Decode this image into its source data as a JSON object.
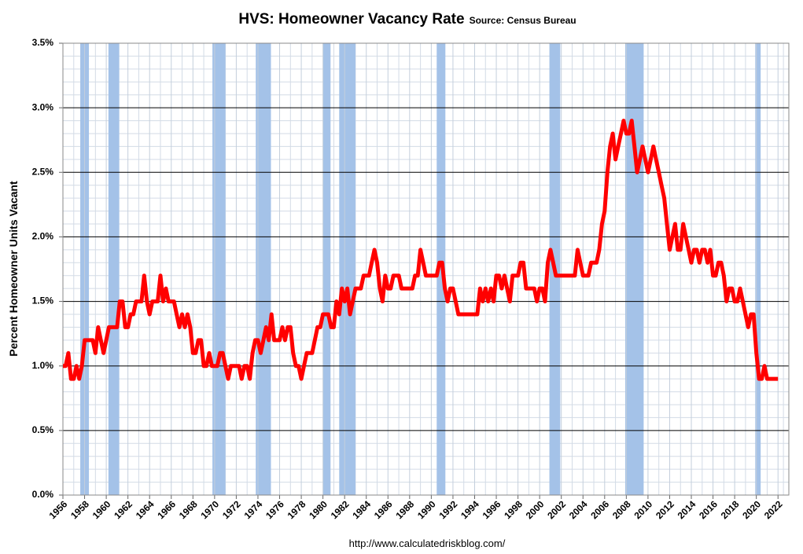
{
  "chart_data": {
    "type": "line",
    "title": "HVS: Homeowner Vacancy Rate",
    "subtitle": "Source: Census Bureau",
    "y_label": "Percent Homeowner Units Vacant",
    "footer": "http://www.calculatedriskblog.com/",
    "xlim": [
      1956,
      2023
    ],
    "xticks": [
      1956,
      1958,
      1960,
      1962,
      1964,
      1966,
      1968,
      1970,
      1972,
      1974,
      1976,
      1978,
      1980,
      1982,
      1984,
      1986,
      1988,
      1990,
      1992,
      1994,
      1996,
      1998,
      2000,
      2002,
      2004,
      2006,
      2008,
      2010,
      2012,
      2014,
      2016,
      2018,
      2020,
      2022
    ],
    "ylim": [
      0,
      3.5
    ],
    "yticks": [
      {
        "value": 0,
        "label": "0.0%"
      },
      {
        "value": 0.5,
        "label": "0.5%"
      },
      {
        "value": 1,
        "label": "1.0%"
      },
      {
        "value": 1.5,
        "label": "1.5%"
      },
      {
        "value": 2,
        "label": "2.0%"
      },
      {
        "value": 2.5,
        "label": "2.5%"
      },
      {
        "value": 3,
        "label": "3.0%"
      },
      {
        "value": 3.5,
        "label": "3.5%"
      }
    ],
    "grid": true,
    "recession_color": "#a4c2e8",
    "recessions": [
      {
        "start": 1957.6,
        "end": 1958.4
      },
      {
        "start": 1960.2,
        "end": 1961.2
      },
      {
        "start": 1969.8,
        "end": 1971.0
      },
      {
        "start": 1973.8,
        "end": 1975.2
      },
      {
        "start": 1980.0,
        "end": 1980.7
      },
      {
        "start": 1981.5,
        "end": 1983.0
      },
      {
        "start": 1990.5,
        "end": 1991.3
      },
      {
        "start": 2000.9,
        "end": 2001.9
      },
      {
        "start": 2007.9,
        "end": 2009.6
      },
      {
        "start": 2019.9,
        "end": 2020.4
      }
    ],
    "series": [
      {
        "color": "#ff0000",
        "x": [
          1956,
          1956.25,
          1956.5,
          1956.75,
          1957,
          1957.25,
          1957.5,
          1957.75,
          1958,
          1958.25,
          1958.5,
          1958.75,
          1959,
          1959.25,
          1959.5,
          1959.75,
          1960,
          1960.25,
          1960.5,
          1960.75,
          1961,
          1961.25,
          1961.5,
          1961.75,
          1962,
          1962.25,
          1962.5,
          1962.75,
          1963,
          1963.25,
          1963.5,
          1963.75,
          1964,
          1964.25,
          1964.5,
          1964.75,
          1965,
          1965.25,
          1965.5,
          1965.75,
          1966,
          1966.25,
          1966.5,
          1966.75,
          1967,
          1967.25,
          1967.5,
          1967.75,
          1968,
          1968.25,
          1968.5,
          1968.75,
          1969,
          1969.25,
          1969.5,
          1969.75,
          1970,
          1970.25,
          1970.5,
          1970.75,
          1971,
          1971.25,
          1971.5,
          1971.75,
          1972,
          1972.25,
          1972.5,
          1972.75,
          1973,
          1973.25,
          1973.5,
          1973.75,
          1974,
          1974.25,
          1974.5,
          1974.75,
          1975,
          1975.25,
          1975.5,
          1975.75,
          1976,
          1976.25,
          1976.5,
          1976.75,
          1977,
          1977.25,
          1977.5,
          1977.75,
          1978,
          1978.25,
          1978.5,
          1978.75,
          1979,
          1979.25,
          1979.5,
          1979.75,
          1980,
          1980.25,
          1980.5,
          1980.75,
          1981,
          1981.25,
          1981.5,
          1981.75,
          1982,
          1982.25,
          1982.5,
          1982.75,
          1983,
          1983.25,
          1983.5,
          1983.75,
          1984,
          1984.25,
          1984.5,
          1984.75,
          1985,
          1985.25,
          1985.5,
          1985.75,
          1986,
          1986.25,
          1986.5,
          1986.75,
          1987,
          1987.25,
          1987.5,
          1987.75,
          1988,
          1988.25,
          1988.5,
          1988.75,
          1989,
          1989.25,
          1989.5,
          1989.75,
          1990,
          1990.25,
          1990.5,
          1990.75,
          1991,
          1991.25,
          1991.5,
          1991.75,
          1992,
          1992.25,
          1992.5,
          1992.75,
          1993,
          1993.25,
          1993.5,
          1993.75,
          1994,
          1994.25,
          1994.5,
          1994.75,
          1995,
          1995.25,
          1995.5,
          1995.75,
          1996,
          1996.25,
          1996.5,
          1996.75,
          1997,
          1997.25,
          1997.5,
          1997.75,
          1998,
          1998.25,
          1998.5,
          1998.75,
          1999,
          1999.25,
          1999.5,
          1999.75,
          2000,
          2000.25,
          2000.5,
          2000.75,
          2001,
          2001.25,
          2001.5,
          2001.75,
          2002,
          2002.25,
          2002.5,
          2002.75,
          2003,
          2003.25,
          2003.5,
          2003.75,
          2004,
          2004.25,
          2004.5,
          2004.75,
          2005,
          2005.25,
          2005.5,
          2005.75,
          2006,
          2006.25,
          2006.5,
          2006.75,
          2007,
          2007.25,
          2007.5,
          2007.75,
          2008,
          2008.25,
          2008.5,
          2008.75,
          2009,
          2009.25,
          2009.5,
          2009.75,
          2010,
          2010.25,
          2010.5,
          2010.75,
          2011,
          2011.25,
          2011.5,
          2011.75,
          2012,
          2012.25,
          2012.5,
          2012.75,
          2013,
          2013.25,
          2013.5,
          2013.75,
          2014,
          2014.25,
          2014.5,
          2014.75,
          2015,
          2015.25,
          2015.5,
          2015.75,
          2016,
          2016.25,
          2016.5,
          2016.75,
          2017,
          2017.25,
          2017.5,
          2017.75,
          2018,
          2018.25,
          2018.5,
          2018.75,
          2019,
          2019.25,
          2019.5,
          2019.75,
          2020,
          2020.25,
          2020.5,
          2020.75,
          2021,
          2021.25,
          2021.5,
          2021.75,
          2022
        ],
        "values": [
          1.0,
          1.0,
          1.1,
          0.9,
          0.9,
          1.0,
          0.9,
          1.0,
          1.2,
          1.2,
          1.2,
          1.2,
          1.1,
          1.3,
          1.2,
          1.1,
          1.2,
          1.3,
          1.3,
          1.3,
          1.3,
          1.5,
          1.5,
          1.3,
          1.3,
          1.4,
          1.4,
          1.5,
          1.5,
          1.5,
          1.7,
          1.5,
          1.4,
          1.5,
          1.5,
          1.5,
          1.7,
          1.5,
          1.6,
          1.5,
          1.5,
          1.5,
          1.4,
          1.3,
          1.4,
          1.3,
          1.4,
          1.3,
          1.1,
          1.1,
          1.2,
          1.2,
          1.0,
          1.0,
          1.1,
          1.0,
          1.0,
          1.0,
          1.1,
          1.1,
          1.0,
          0.9,
          1.0,
          1.0,
          1.0,
          1.0,
          0.9,
          1.0,
          1.0,
          0.9,
          1.1,
          1.2,
          1.2,
          1.1,
          1.2,
          1.3,
          1.2,
          1.4,
          1.2,
          1.2,
          1.2,
          1.3,
          1.2,
          1.3,
          1.3,
          1.1,
          1.0,
          1.0,
          0.9,
          1.0,
          1.1,
          1.1,
          1.1,
          1.2,
          1.3,
          1.3,
          1.4,
          1.4,
          1.4,
          1.3,
          1.3,
          1.5,
          1.4,
          1.6,
          1.5,
          1.6,
          1.4,
          1.5,
          1.6,
          1.6,
          1.6,
          1.7,
          1.7,
          1.7,
          1.8,
          1.9,
          1.8,
          1.6,
          1.5,
          1.7,
          1.6,
          1.6,
          1.7,
          1.7,
          1.7,
          1.6,
          1.6,
          1.6,
          1.6,
          1.6,
          1.7,
          1.7,
          1.9,
          1.8,
          1.7,
          1.7,
          1.7,
          1.7,
          1.7,
          1.8,
          1.8,
          1.6,
          1.5,
          1.6,
          1.6,
          1.5,
          1.4,
          1.4,
          1.4,
          1.4,
          1.4,
          1.4,
          1.4,
          1.4,
          1.6,
          1.5,
          1.6,
          1.5,
          1.6,
          1.5,
          1.7,
          1.7,
          1.6,
          1.7,
          1.6,
          1.5,
          1.7,
          1.7,
          1.7,
          1.8,
          1.8,
          1.6,
          1.6,
          1.6,
          1.6,
          1.5,
          1.6,
          1.6,
          1.5,
          1.8,
          1.9,
          1.8,
          1.7,
          1.7,
          1.7,
          1.7,
          1.7,
          1.7,
          1.7,
          1.7,
          1.9,
          1.8,
          1.7,
          1.7,
          1.7,
          1.8,
          1.8,
          1.8,
          1.9,
          2.1,
          2.2,
          2.5,
          2.7,
          2.8,
          2.6,
          2.7,
          2.8,
          2.9,
          2.8,
          2.8,
          2.9,
          2.7,
          2.5,
          2.6,
          2.7,
          2.6,
          2.5,
          2.6,
          2.7,
          2.6,
          2.5,
          2.4,
          2.3,
          2.1,
          1.9,
          2.0,
          2.1,
          1.9,
          1.9,
          2.1,
          2.0,
          1.9,
          1.8,
          1.9,
          1.9,
          1.8,
          1.9,
          1.9,
          1.8,
          1.9,
          1.7,
          1.7,
          1.8,
          1.8,
          1.7,
          1.5,
          1.6,
          1.6,
          1.5,
          1.5,
          1.6,
          1.5,
          1.4,
          1.3,
          1.4,
          1.4,
          1.1,
          0.9,
          0.9,
          1.0,
          0.9,
          0.9,
          0.9,
          0.9,
          0.9
        ]
      }
    ]
  }
}
